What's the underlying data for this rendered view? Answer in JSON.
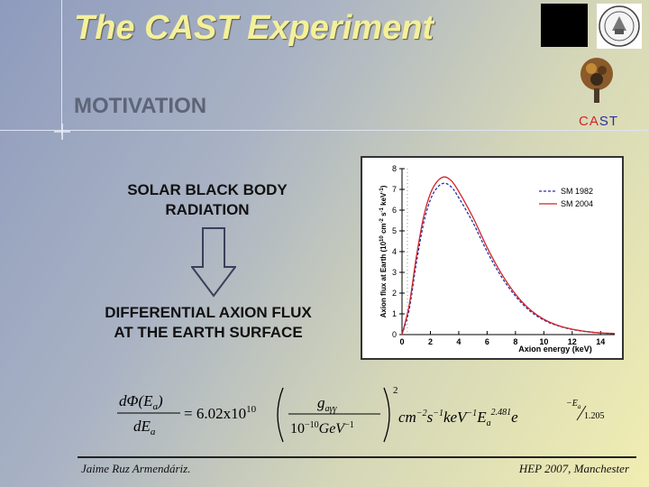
{
  "slide": {
    "title": "The CAST Experiment",
    "subtitle": "MOTIVATION",
    "cast_label_red": "CA",
    "cast_label_blue": "ST",
    "text_top_line1": "SOLAR BLACK BODY",
    "text_top_line2": "RADIATION",
    "text_bottom_line1": "DIFFERENTIAL AXION FLUX",
    "text_bottom_line2": "AT THE EARTH SURFACE",
    "footer_left": "Jaime Ruz Armendáriz.",
    "footer_right": "HEP 2007, Manchester",
    "colors": {
      "title": "#f4f09a",
      "subtitle": "#5e6478",
      "cast_red": "#d0242a",
      "cast_blue": "#2b2e9e"
    }
  },
  "formula": {
    "lhs_num": "dΦ(E",
    "lhs_num_sub": "a",
    "lhs_num_end": ")",
    "lhs_den": "dE",
    "lhs_den_sub": "a",
    "coef": "= 6.02x10",
    "coef_exp": "10",
    "frac_num": "g",
    "frac_num_sub": "aγγ",
    "frac_den": "10",
    "frac_den_exp": "−10",
    "frac_den_unit": "GeV",
    "frac_den_unit_exp": "−1",
    "paren_exp": "2",
    "units": "cm",
    "units_exp1": "−2",
    "units_s": "s",
    "units_exp2": "−1",
    "units_kev": "keV",
    "units_exp3": "−1",
    "ea": "E",
    "ea_sub": "a",
    "ea_exp": "2.481",
    "e": "e",
    "e_exp_num": "−E",
    "e_exp_sub": "a",
    "e_exp_den": "1.205"
  },
  "chart_data": {
    "type": "line",
    "xlabel": "Axion energy (keV)",
    "ylabel": "Axion flux at Earth (10",
    "ylabel_exp1": "10",
    "ylabel_mid": " cm",
    "ylabel_exp2": "-2",
    "ylabel_s": " s",
    "ylabel_exp3": "-1",
    "ylabel_kev": " keV",
    "ylabel_exp4": "-1",
    "ylabel_end": ")",
    "xlim": [
      0,
      15
    ],
    "ylim": [
      0,
      8
    ],
    "xticks": [
      0,
      2,
      4,
      6,
      8,
      10,
      12,
      14
    ],
    "yticks": [
      0,
      1,
      2,
      3,
      4,
      5,
      6,
      7,
      8
    ],
    "legend_position": "top-right",
    "series": [
      {
        "name": "SM 1982",
        "color": "#2b2e9e",
        "dash": true,
        "x": [
          0,
          0.5,
          1,
          1.5,
          2,
          2.5,
          3,
          3.5,
          4,
          5,
          6,
          7,
          8,
          9,
          10,
          11,
          12,
          13,
          14,
          15
        ],
        "y": [
          0,
          1.2,
          3.4,
          5.3,
          6.5,
          7.1,
          7.3,
          7.1,
          6.6,
          5.4,
          4.0,
          2.8,
          1.85,
          1.15,
          0.7,
          0.42,
          0.25,
          0.14,
          0.08,
          0.05
        ]
      },
      {
        "name": "SM 2004",
        "color": "#d0242a",
        "dash": false,
        "x": [
          0,
          0.5,
          1,
          1.5,
          2,
          2.5,
          3,
          3.5,
          4,
          5,
          6,
          7,
          8,
          9,
          10,
          11,
          12,
          13,
          14,
          15
        ],
        "y": [
          0,
          1.4,
          3.7,
          5.6,
          6.8,
          7.4,
          7.6,
          7.4,
          6.9,
          5.65,
          4.2,
          2.95,
          1.95,
          1.22,
          0.74,
          0.44,
          0.26,
          0.15,
          0.08,
          0.05
        ]
      }
    ]
  }
}
